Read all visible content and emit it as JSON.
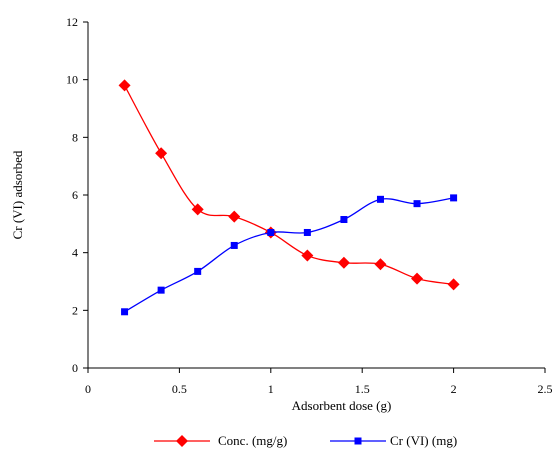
{
  "chart_data": {
    "type": "line",
    "title": "",
    "xlabel": "Adsorbent dose (g)",
    "ylabel": "Cr (VI) adsorbed",
    "xlim": [
      0,
      2.5
    ],
    "ylim": [
      0,
      12
    ],
    "xticks": [
      0,
      0.5,
      1,
      1.5,
      2,
      2.5
    ],
    "yticks": [
      0,
      2,
      4,
      6,
      8,
      10,
      12
    ],
    "xtick_labels": [
      "0",
      "0.5",
      "1",
      "1.5",
      "2",
      "2.5"
    ],
    "ytick_labels": [
      "0",
      "2",
      "4",
      "6",
      "8",
      "10",
      "12"
    ],
    "grid": false,
    "legend_position": "bottom",
    "series": [
      {
        "name": "Conc. (mg/g)",
        "color": "#ff0000",
        "marker": "diamond",
        "x": [
          0.2,
          0.4,
          0.6,
          0.8,
          1.0,
          1.2,
          1.4,
          1.6,
          1.8,
          2.0
        ],
        "values": [
          9.8,
          7.45,
          5.5,
          5.25,
          4.7,
          3.9,
          3.65,
          3.6,
          3.1,
          2.9
        ]
      },
      {
        "name": "Cr (VI) (mg)",
        "color": "#0000ff",
        "marker": "square",
        "x": [
          0.2,
          0.4,
          0.6,
          0.8,
          1.0,
          1.2,
          1.4,
          1.6,
          1.8,
          2.0
        ],
        "values": [
          1.95,
          2.7,
          3.35,
          4.25,
          4.7,
          4.7,
          5.15,
          5.85,
          5.7,
          5.9
        ]
      }
    ]
  }
}
